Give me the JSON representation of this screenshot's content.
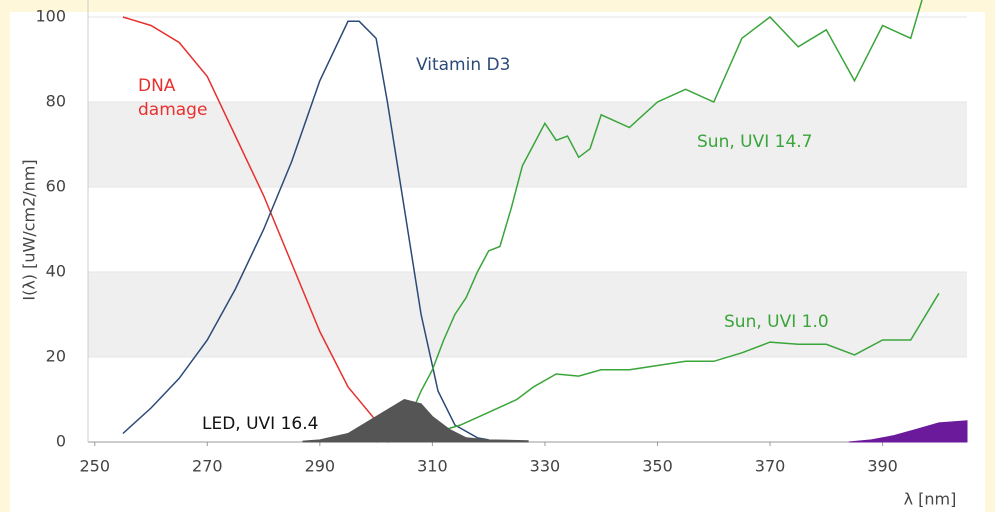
{
  "chart_data": {
    "type": "line",
    "xlabel": "λ [nm]",
    "ylabel": "I(λ)  [uW/cm2/nm]",
    "xlim": [
      248.8,
      405
    ],
    "ylim": [
      0,
      104
    ],
    "xticks": [
      250,
      270,
      290,
      310,
      330,
      350,
      370,
      390
    ],
    "yticks": [
      0,
      20,
      40,
      60,
      80,
      100
    ],
    "grid": true,
    "series": [
      {
        "name": "DNA damage",
        "color": "#e8302f",
        "fill": false,
        "x": [
          255,
          260,
          265,
          270,
          275,
          280,
          285,
          290,
          295,
          300,
          305,
          310
        ],
        "values": [
          100,
          98,
          94,
          86,
          72,
          58,
          42,
          26,
          13,
          5,
          1.5,
          0.3
        ]
      },
      {
        "name": "Vitamin D3",
        "color": "#2c4a78",
        "fill": false,
        "x": [
          255,
          260,
          265,
          270,
          275,
          280,
          285,
          290,
          295,
          297,
          300,
          302,
          305,
          308,
          311,
          314,
          318,
          320
        ],
        "values": [
          2,
          8,
          15,
          24,
          36,
          50,
          66,
          85,
          99,
          99,
          95,
          80,
          55,
          30,
          12,
          4,
          1,
          0.5
        ]
      },
      {
        "name": "Sun, UVI 14.7",
        "color": "#3aa53a",
        "fill": false,
        "x": [
          300,
          303,
          306,
          308,
          310,
          312,
          314,
          316,
          318,
          320,
          322,
          324,
          326,
          328,
          330,
          332,
          334,
          336,
          338,
          340,
          345,
          350,
          355,
          360,
          365,
          370,
          375,
          380,
          385,
          390,
          395,
          397
        ],
        "values": [
          0,
          1,
          6,
          12,
          17,
          24,
          30,
          34,
          40,
          45,
          46,
          55,
          65,
          70,
          75,
          71,
          72,
          67,
          69,
          77,
          74,
          80,
          83,
          80,
          95,
          100,
          93,
          97,
          85,
          98,
          95,
          104
        ]
      },
      {
        "name": "Sun, UVI 1.0",
        "color": "#3aa53a",
        "fill": false,
        "x": [
          302,
          306,
          310,
          315,
          320,
          325,
          328,
          332,
          336,
          340,
          345,
          350,
          355,
          360,
          365,
          370,
          375,
          380,
          385,
          390,
          395,
          400
        ],
        "values": [
          0,
          0.5,
          2,
          4,
          7,
          10,
          13,
          16,
          15.5,
          17,
          17,
          18,
          19,
          19,
          21,
          23.5,
          23,
          23,
          20.5,
          24,
          24,
          35
        ]
      },
      {
        "name": "LED, UVI 16.4",
        "color": "#555555",
        "fill": true,
        "x": [
          287,
          290,
          295,
          300,
          305,
          308,
          310,
          313,
          316,
          320,
          327
        ],
        "values": [
          0.2,
          0.5,
          2,
          6,
          10,
          9,
          6,
          3,
          1,
          0.5,
          0.3
        ]
      },
      {
        "name": null,
        "color": "#6a1a9a",
        "fill": true,
        "x": [
          384,
          388,
          392,
          396,
          400,
          405
        ],
        "values": [
          0,
          0.5,
          1.5,
          3,
          4.5,
          5
        ]
      }
    ]
  }
}
